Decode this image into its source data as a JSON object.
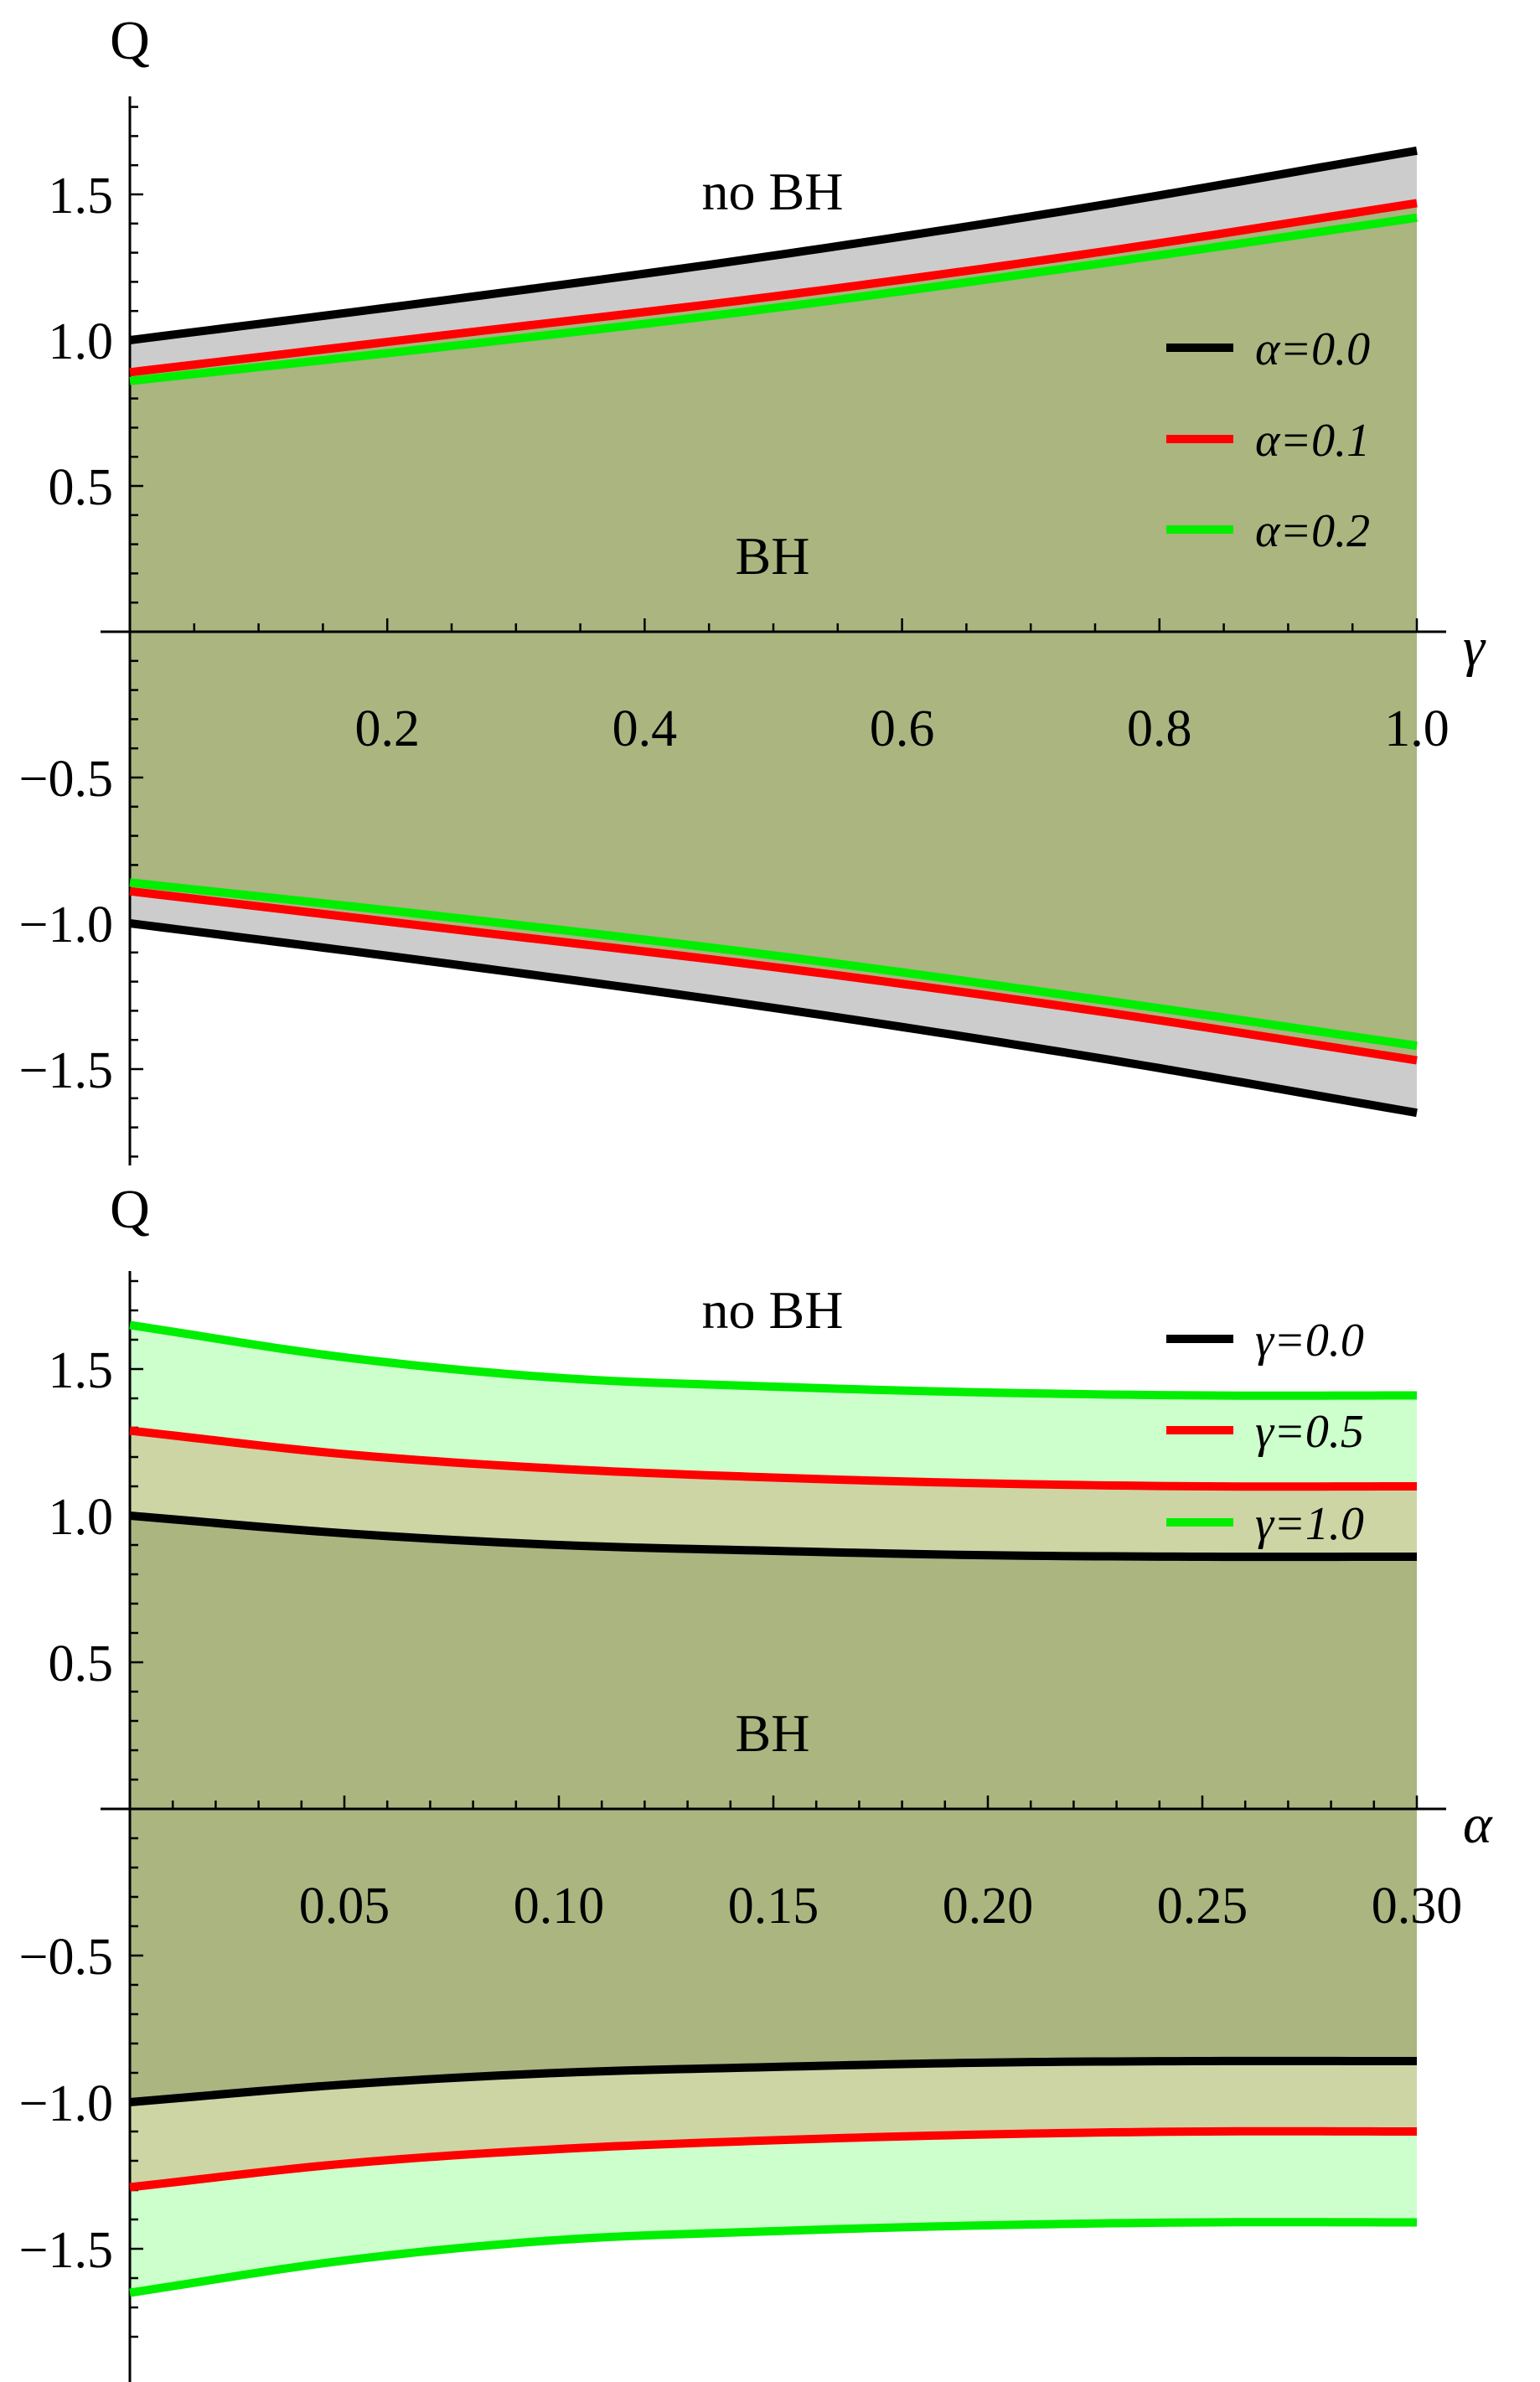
{
  "chart_data": [
    {
      "type": "area",
      "title": "",
      "xlabel": "γ",
      "ylabel": "Q",
      "xlim": [
        0,
        1.0
      ],
      "ylim": [
        -1.8,
        1.8
      ],
      "xticks": [
        "0.2",
        "0.4",
        "0.6",
        "0.8",
        "1.0"
      ],
      "yticks": [
        "1.5",
        "1.0",
        "0.5",
        "−0.5",
        "−1.0",
        "−1.5"
      ],
      "x": [
        0,
        0.25,
        0.5,
        0.75,
        1.0
      ],
      "series": [
        {
          "name": "α=0.0",
          "color": "#000000",
          "fill": "#cccccc",
          "values": [
            1.0,
            1.14,
            1.29,
            1.46,
            1.65
          ]
        },
        {
          "name": "α=0.1",
          "color": "#ff0000",
          "fill": "#aab580",
          "values": [
            0.89,
            1.02,
            1.15,
            1.3,
            1.47
          ]
        },
        {
          "name": "α=0.2",
          "color": "#00ee00",
          "fill": "#aab580",
          "values": [
            0.86,
            0.98,
            1.11,
            1.26,
            1.42
          ]
        }
      ],
      "symmetric": true,
      "annotations": [
        "no BH",
        "BH"
      ],
      "legend_position": "right"
    },
    {
      "type": "area",
      "title": "",
      "xlabel": "α",
      "ylabel": "Q",
      "xlim": [
        0,
        0.3
      ],
      "ylim": [
        -1.8,
        1.8
      ],
      "xticks": [
        "0.05",
        "0.10",
        "0.15",
        "0.20",
        "0.25",
        "0.30"
      ],
      "yticks": [
        "1.5",
        "1.0",
        "0.5",
        "−0.5",
        "−1.0",
        "−1.5"
      ],
      "x": [
        0,
        0.05,
        0.1,
        0.15,
        0.2,
        0.25,
        0.3
      ],
      "series": [
        {
          "name": "γ=0.0",
          "color": "#000000",
          "fill": "#aab580",
          "values": [
            1.0,
            0.94,
            0.9,
            0.88,
            0.865,
            0.86,
            0.86
          ]
        },
        {
          "name": "γ=0.5",
          "color": "#ff0000",
          "fill": "#cdd5a5",
          "values": [
            1.29,
            1.21,
            1.16,
            1.13,
            1.11,
            1.1,
            1.1
          ]
        },
        {
          "name": "γ=1.0",
          "color": "#00ee00",
          "fill": "#ccffcc",
          "values": [
            1.65,
            1.54,
            1.47,
            1.44,
            1.42,
            1.41,
            1.41
          ]
        }
      ],
      "symmetric": true,
      "annotations": [
        "no BH",
        "BH"
      ],
      "legend_position": "right"
    }
  ]
}
